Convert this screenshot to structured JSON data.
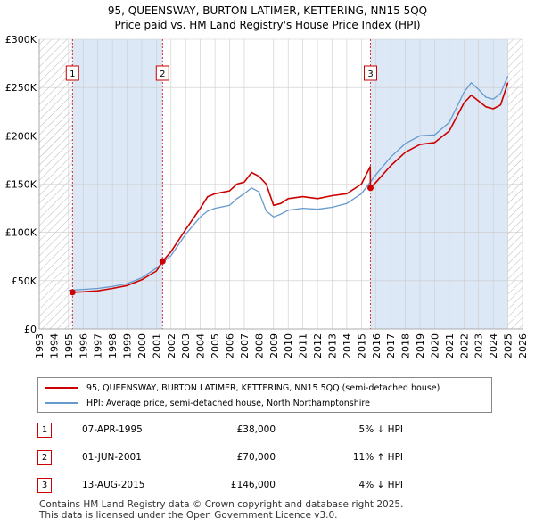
{
  "title_line1": "95, QUEENSWAY, BURTON LATIMER, KETTERING, NN15 5QQ",
  "title_line2": "Price paid vs. HM Land Registry's House Price Index (HPI)",
  "colors": {
    "property": "#cc0000",
    "hpi": "#6699cc",
    "shade": "#dde8f6",
    "grid": "#cccccc"
  },
  "chart_data": {
    "type": "line",
    "title": "Price paid vs. HM Land Registry's House Price Index (HPI)",
    "xlim": [
      1993,
      2026
    ],
    "ylim": [
      0,
      300000
    ],
    "x_ticks": [
      1993,
      1994,
      1995,
      1996,
      1997,
      1998,
      1999,
      2000,
      2001,
      2002,
      2003,
      2004,
      2005,
      2006,
      2007,
      2008,
      2009,
      2010,
      2011,
      2012,
      2013,
      2014,
      2015,
      2016,
      2017,
      2018,
      2019,
      2020,
      2021,
      2022,
      2023,
      2024,
      2025,
      2026
    ],
    "y_ticks": [
      {
        "value": 0,
        "label": "£0"
      },
      {
        "value": 50000,
        "label": "£50K"
      },
      {
        "value": 100000,
        "label": "£100K"
      },
      {
        "value": 150000,
        "label": "£150K"
      },
      {
        "value": 200000,
        "label": "£200K"
      },
      {
        "value": 250000,
        "label": "£250K"
      },
      {
        "value": 300000,
        "label": "£300K"
      }
    ],
    "hatched_ranges": [
      [
        1993,
        1995.27
      ],
      [
        2025.0,
        2026
      ]
    ],
    "shaded_ranges": [
      [
        1995.27,
        2001.42
      ],
      [
        2015.62,
        2025.0
      ]
    ],
    "series": [
      {
        "name": "95, QUEENSWAY, BURTON LATIMER, KETTERING, NN15 5QQ (semi-detached house)",
        "x": [
          1995.27,
          1996,
          1997,
          1998,
          1999,
          2000,
          2001,
          2001.42,
          2002,
          2003,
          2004,
          2004.5,
          2005,
          2006,
          2006.5,
          2007,
          2007.5,
          2008,
          2008.5,
          2009,
          2009.5,
          2010,
          2011,
          2012,
          2013,
          2014,
          2015,
          2015.6,
          2015.62,
          2016,
          2017,
          2018,
          2019,
          2020,
          2021,
          2022,
          2022.5,
          2023,
          2023.5,
          2024,
          2024.5,
          2025.0
        ],
        "values": [
          38000,
          38500,
          39500,
          42000,
          45000,
          51000,
          60000,
          70000,
          80000,
          103000,
          125000,
          137000,
          140000,
          143000,
          150000,
          152000,
          162000,
          158000,
          150000,
          128000,
          130000,
          135000,
          137000,
          135000,
          138000,
          140000,
          150000,
          168000,
          146000,
          152000,
          169000,
          183000,
          191000,
          193000,
          205000,
          234000,
          242000,
          236000,
          230000,
          228000,
          232000,
          255000
        ]
      },
      {
        "name": "HPI: Average price, semi-detached house, North Northamptonshire",
        "x": [
          1995.0,
          1996,
          1997,
          1998,
          1999,
          2000,
          2001,
          2002,
          2003,
          2004,
          2004.5,
          2005,
          2006,
          2006.5,
          2007,
          2007.5,
          2008,
          2008.5,
          2009,
          2009.5,
          2010,
          2011,
          2012,
          2013,
          2014,
          2015,
          2016,
          2017,
          2018,
          2019,
          2020,
          2021,
          2022,
          2022.5,
          2023,
          2023.5,
          2024,
          2024.5,
          2025.0
        ],
        "values": [
          40000,
          41000,
          42000,
          44000,
          47000,
          53000,
          63000,
          76000,
          98000,
          116000,
          122000,
          125000,
          128000,
          135000,
          140000,
          146000,
          142000,
          122000,
          116000,
          119000,
          123000,
          125000,
          124000,
          126000,
          130000,
          140000,
          160000,
          178000,
          192000,
          200000,
          201000,
          214000,
          245000,
          255000,
          248000,
          240000,
          238000,
          244000,
          262000
        ]
      }
    ],
    "sales": [
      {
        "label": "1",
        "x": 1995.27,
        "value": 38000
      },
      {
        "label": "2",
        "x": 2001.42,
        "value": 70000
      },
      {
        "label": "3",
        "x": 2015.62,
        "value": 146000
      }
    ]
  },
  "legend": {
    "property_label": "95, QUEENSWAY, BURTON LATIMER, KETTERING, NN15 5QQ (semi-detached house)",
    "hpi_label": "HPI: Average price, semi-detached house, North Northamptonshire"
  },
  "sales_table": [
    {
      "num": "1",
      "date": "07-APR-1995",
      "price": "£38,000",
      "hpi": "5% ↓ HPI"
    },
    {
      "num": "2",
      "date": "01-JUN-2001",
      "price": "£70,000",
      "hpi": "11% ↑ HPI"
    },
    {
      "num": "3",
      "date": "13-AUG-2015",
      "price": "£146,000",
      "hpi": "4% ↓ HPI"
    }
  ],
  "footer_line1": "Contains HM Land Registry data © Crown copyright and database right 2025.",
  "footer_line2": "This data is licensed under the Open Government Licence v3.0."
}
